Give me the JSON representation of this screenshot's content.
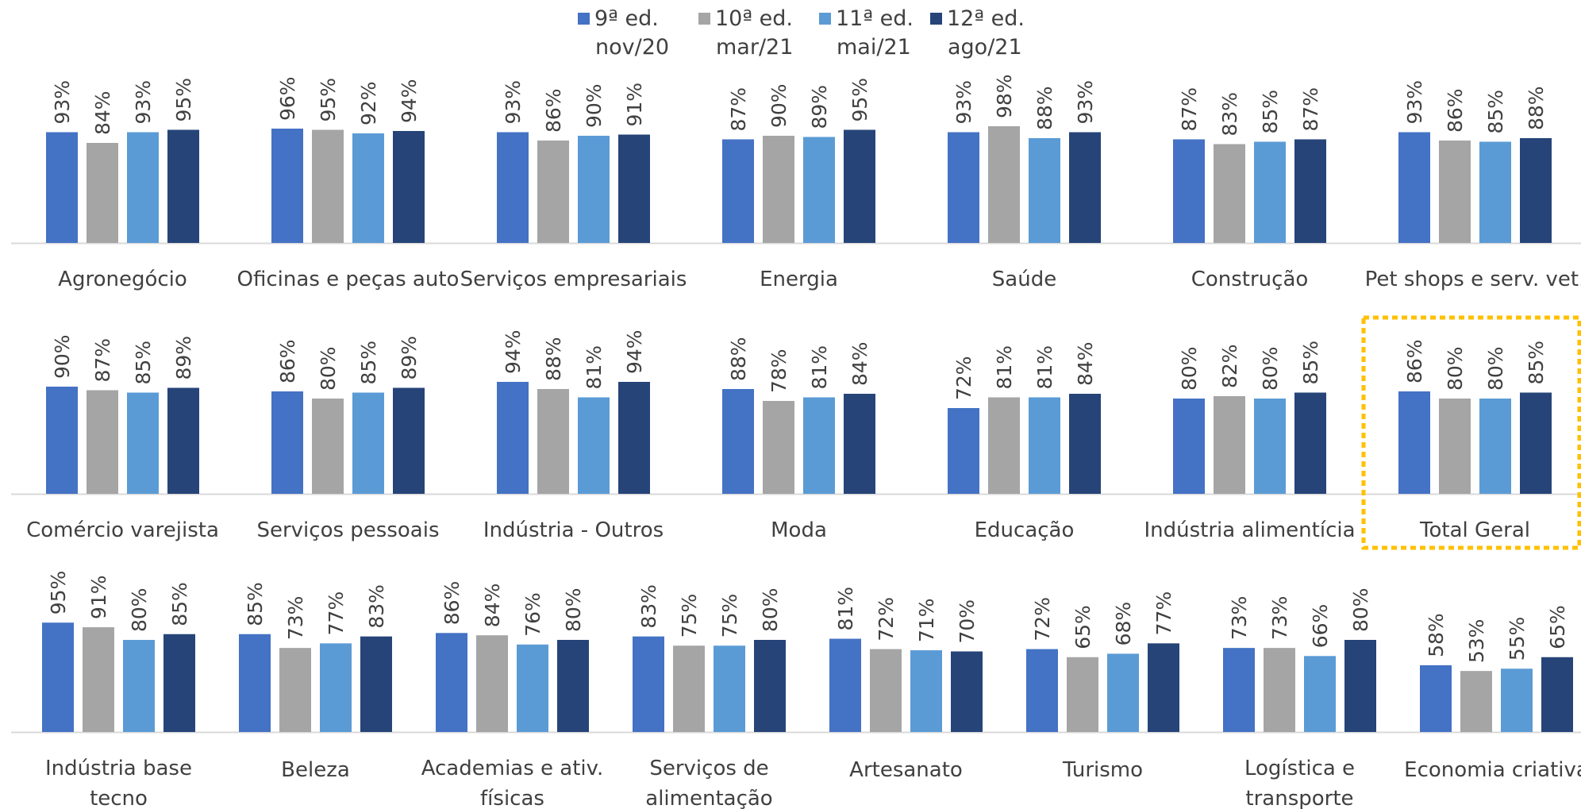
{
  "chart_data": {
    "type": "bar",
    "layout": "small-multiples",
    "legend_position": "top-center",
    "grid": false,
    "ylim": [
      0,
      100
    ],
    "series": [
      {
        "name": "9ª ed.",
        "date": "nov/20",
        "color": "#4472C4"
      },
      {
        "name": "10ª ed.",
        "date": "mar/21",
        "color": "#A5A5A5"
      },
      {
        "name": "11ª ed.",
        "date": "mai/21",
        "color": "#5B9BD5"
      },
      {
        "name": "12ª ed.",
        "date": "ago/21",
        "color": "#264478"
      }
    ],
    "panels": [
      {
        "category": [
          "Agronegócio"
        ],
        "values": [
          93,
          84,
          93,
          95
        ]
      },
      {
        "category": [
          "Oficinas e peças auto"
        ],
        "values": [
          96,
          95,
          92,
          94
        ]
      },
      {
        "category": [
          "Serviços empresariais"
        ],
        "values": [
          93,
          86,
          90,
          91
        ]
      },
      {
        "category": [
          "Energia"
        ],
        "values": [
          87,
          90,
          89,
          95
        ]
      },
      {
        "category": [
          "Saúde"
        ],
        "values": [
          93,
          98,
          88,
          93
        ]
      },
      {
        "category": [
          "Construção"
        ],
        "values": [
          87,
          83,
          85,
          87
        ]
      },
      {
        "category": [
          "Pet shops e serv. vet."
        ],
        "values": [
          93,
          86,
          85,
          88
        ]
      },
      {
        "category": [
          "Comércio varejista"
        ],
        "values": [
          90,
          87,
          85,
          89
        ]
      },
      {
        "category": [
          "Serviços pessoais"
        ],
        "values": [
          86,
          80,
          85,
          89
        ]
      },
      {
        "category": [
          "Indústria - Outros"
        ],
        "values": [
          94,
          88,
          81,
          94
        ]
      },
      {
        "category": [
          "Moda"
        ],
        "values": [
          88,
          78,
          81,
          84
        ]
      },
      {
        "category": [
          "Educação"
        ],
        "values": [
          72,
          81,
          81,
          84
        ]
      },
      {
        "category": [
          "Indústria alimentícia"
        ],
        "values": [
          80,
          82,
          80,
          85
        ]
      },
      {
        "category": [
          "Total Geral"
        ],
        "values": [
          86,
          80,
          80,
          85
        ],
        "highlight": true
      },
      {
        "category": [
          "Indústria base",
          "tecno"
        ],
        "values": [
          95,
          91,
          80,
          85
        ]
      },
      {
        "category": [
          "Beleza"
        ],
        "values": [
          85,
          73,
          77,
          83
        ]
      },
      {
        "category": [
          "Academias e ativ.",
          "físicas"
        ],
        "values": [
          86,
          84,
          76,
          80
        ]
      },
      {
        "category": [
          "Serviços de",
          "alimentação"
        ],
        "values": [
          83,
          75,
          75,
          80
        ]
      },
      {
        "category": [
          "Artesanato"
        ],
        "values": [
          81,
          72,
          71,
          70
        ]
      },
      {
        "category": [
          "Turismo"
        ],
        "values": [
          72,
          65,
          68,
          77
        ]
      },
      {
        "category": [
          "Logística e",
          "transporte"
        ],
        "values": [
          73,
          73,
          66,
          80
        ]
      },
      {
        "category": [
          "Economia criativa"
        ],
        "values": [
          58,
          53,
          55,
          65
        ]
      }
    ],
    "value_suffix": "%",
    "highlight_color": "#FFC000"
  }
}
